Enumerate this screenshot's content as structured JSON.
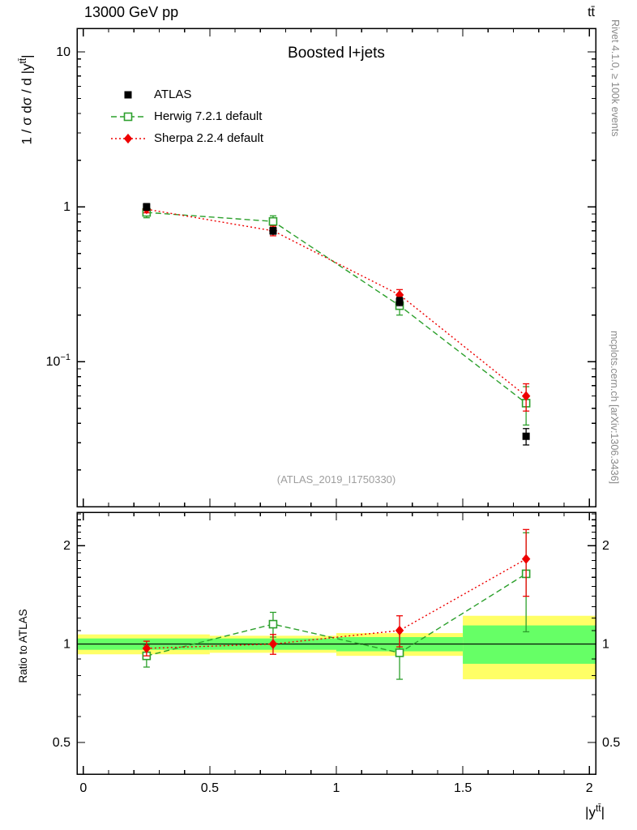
{
  "header": {
    "left": "13000 GeV pp",
    "right": "tt̄"
  },
  "side_notes": {
    "top": "Rivet 4.1.0, ≥ 100k events",
    "bottom": "mcplots.cern.ch [arXiv:1306.3436]"
  },
  "watermark": "(ATLAS_2019_I1750330)",
  "chart_data": {
    "type": "line",
    "title": "Boosted l+jets",
    "xlabel": {
      "prefix": "|y",
      "sup": "tt̄",
      "suffix": "|"
    },
    "ylabel": {
      "prefix": "1 / σ dσ / d |y",
      "sup": "tt̄",
      "suffix": "|"
    },
    "ratio_ylabel": "Ratio to ATLAS",
    "x_axis": {
      "min": -0.025,
      "max": 2.025,
      "major_ticks": [
        0,
        0.5,
        1,
        1.5,
        2
      ],
      "tick_labels": [
        "0",
        "0.5",
        "1",
        "1.5",
        "2"
      ],
      "minor_step": 0.1
    },
    "y_axis_main": {
      "scale": "log",
      "min": 0.0116,
      "max": 14.2,
      "major_ticks": [
        0.1,
        1,
        10
      ],
      "tick_labels": [
        {
          "mant": "10",
          "exp": "−1"
        },
        {
          "mant": "1",
          "exp": ""
        },
        {
          "mant": "10",
          "exp": ""
        }
      ]
    },
    "y_axis_ratio": {
      "scale": "log",
      "min": 0.4,
      "max": 2.53,
      "major_ticks": [
        0.5,
        1,
        2
      ],
      "tick_labels": [
        "0.5",
        "1",
        "2"
      ]
    },
    "x": [
      0.25,
      0.75,
      1.25,
      1.75
    ],
    "bin_edges": [
      0,
      0.5,
      1,
      1.5,
      2
    ],
    "series": [
      {
        "name": "ATLAS",
        "role": "reference-data",
        "color": "#000000",
        "marker": "filled-square",
        "line": "none",
        "y": [
          1.0,
          0.7,
          0.245,
          0.033
        ],
        "yerr": [
          0.05,
          0.035,
          0.015,
          0.004
        ]
      },
      {
        "name": "Herwig 7.2.1 default",
        "role": "mc",
        "color": "#2ca02c",
        "marker": "open-square",
        "line": "dashed",
        "y": [
          0.92,
          0.805,
          0.23,
          0.054
        ],
        "yerr": [
          0.07,
          0.07,
          0.03,
          0.015
        ],
        "ratio": [
          0.92,
          1.15,
          0.94,
          1.64
        ],
        "ratio_err": [
          0.07,
          0.1,
          0.16,
          0.55
        ]
      },
      {
        "name": "Sherpa 2.2.4 default",
        "role": "mc",
        "color": "#ee0000",
        "marker": "filled-diamond",
        "line": "dotted",
        "y": [
          0.965,
          0.7,
          0.27,
          0.06
        ],
        "yerr": [
          0.05,
          0.05,
          0.022,
          0.012
        ],
        "ratio": [
          0.97,
          1.0,
          1.1,
          1.82
        ],
        "ratio_err": [
          0.05,
          0.07,
          0.12,
          0.42
        ]
      }
    ],
    "ratio_reference": {
      "bins": [
        [
          0,
          0.5
        ],
        [
          0.5,
          1
        ],
        [
          1,
          1.5
        ],
        [
          1.5,
          2
        ]
      ],
      "green": [
        [
          0.96,
          1.04
        ],
        [
          0.96,
          1.04
        ],
        [
          0.95,
          1.05
        ],
        [
          0.87,
          1.14
        ]
      ],
      "yellow": [
        [
          0.93,
          1.07
        ],
        [
          0.94,
          1.06
        ],
        [
          0.92,
          1.08
        ],
        [
          0.78,
          1.22
        ]
      ],
      "green_color": "#66ff66",
      "yellow_color": "#ffff66"
    }
  }
}
